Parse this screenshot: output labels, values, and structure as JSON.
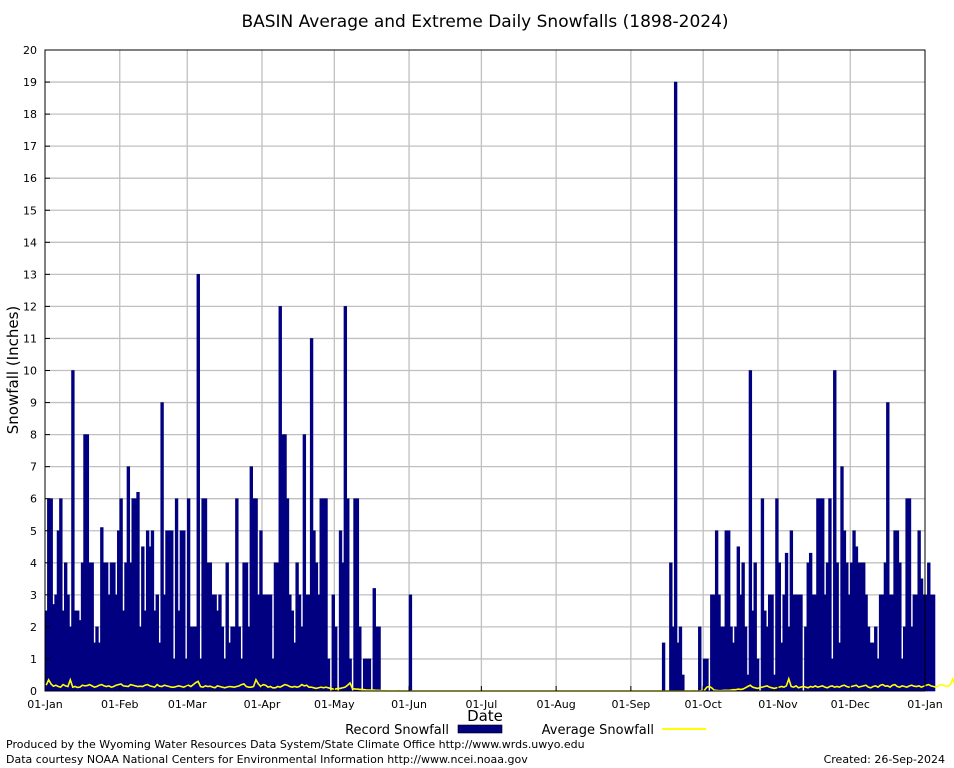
{
  "chart_data": {
    "type": "bar",
    "title": "BASIN Average and Extreme Daily Snowfalls (1898-2024)",
    "xlabel": "Date",
    "ylabel": "Snowfall (Inches)",
    "ylim": [
      0,
      20
    ],
    "yticks": [
      0,
      1,
      2,
      3,
      4,
      5,
      6,
      7,
      8,
      9,
      10,
      11,
      12,
      13,
      14,
      15,
      16,
      17,
      18,
      19,
      20
    ],
    "xlim_days": [
      0,
      365
    ],
    "grid": true,
    "legend_position": "bottom",
    "month_ticks": [
      {
        "label": "01-Jan",
        "day": 0
      },
      {
        "label": "01-Feb",
        "day": 31
      },
      {
        "label": "01-Mar",
        "day": 59
      },
      {
        "label": "01-Apr",
        "day": 90
      },
      {
        "label": "01-May",
        "day": 120
      },
      {
        "label": "01-Jun",
        "day": 151
      },
      {
        "label": "01-Jul",
        "day": 181
      },
      {
        "label": "01-Aug",
        "day": 212
      },
      {
        "label": "01-Sep",
        "day": 243
      },
      {
        "label": "01-Oct",
        "day": 273
      },
      {
        "label": "01-Nov",
        "day": 304
      },
      {
        "label": "01-Dec",
        "day": 334
      },
      {
        "label": "01-Jan",
        "day": 365
      }
    ],
    "series": [
      {
        "name": "Record Snowfall",
        "color": "#000080",
        "values": [
          2.5,
          6,
          6,
          2.7,
          3,
          5,
          6,
          2.5,
          4,
          3,
          2,
          10,
          2.5,
          2.5,
          2.2,
          4,
          8,
          8,
          4,
          4,
          1.5,
          2,
          1.5,
          5.1,
          4,
          4,
          3,
          4,
          4,
          3,
          5,
          6,
          2.5,
          4,
          7,
          4,
          6,
          6,
          6.2,
          2,
          4.5,
          2.5,
          5,
          4.5,
          5,
          2.5,
          3,
          1.5,
          9,
          3,
          5,
          5,
          5,
          1,
          6,
          2.5,
          5,
          5,
          1,
          6,
          2,
          2,
          2,
          13,
          1,
          6,
          6,
          4,
          4,
          3,
          3,
          2.5,
          3,
          2,
          1,
          4,
          1.5,
          2,
          2,
          6,
          2,
          1,
          4,
          4,
          2,
          7,
          6,
          6,
          3,
          5,
          3,
          3,
          3,
          3,
          1,
          4,
          4,
          12,
          8,
          8,
          6,
          3,
          2.5,
          1.5,
          4,
          3,
          2,
          8,
          3,
          3,
          11,
          5,
          4,
          3,
          6,
          6,
          6,
          1,
          0,
          3,
          2,
          0,
          5,
          4,
          12,
          6,
          1,
          0,
          6,
          6,
          2,
          0,
          1,
          1,
          1,
          0,
          3.2,
          2,
          2,
          0,
          0,
          0,
          0,
          0,
          0,
          0,
          0,
          0,
          0,
          0,
          0,
          3,
          0,
          0,
          0,
          0,
          0,
          0,
          0,
          0,
          0,
          0,
          0,
          0,
          0,
          0,
          0,
          0,
          0,
          0,
          0,
          0,
          0,
          0,
          0,
          0,
          0,
          0,
          0,
          0,
          0,
          0,
          0,
          0,
          0,
          0,
          0,
          0,
          0,
          0,
          0,
          0,
          0,
          0,
          0,
          0,
          0,
          0,
          0,
          0,
          0,
          0,
          0,
          0,
          0,
          0,
          0,
          0,
          0,
          0,
          0,
          0,
          0,
          0,
          0,
          0,
          0,
          0,
          0,
          0,
          0,
          0,
          0,
          0,
          0,
          0,
          0,
          0,
          0,
          0,
          0,
          0,
          0,
          0,
          0,
          0,
          0,
          0,
          0,
          0,
          0,
          0,
          0,
          0,
          0,
          0,
          0,
          0,
          0,
          0,
          0,
          0,
          0,
          0,
          0,
          0,
          1.5,
          0,
          0,
          4,
          2,
          19,
          1.5,
          2,
          0.5,
          0,
          0,
          0,
          0,
          0,
          0,
          2,
          0,
          1,
          1,
          0,
          3,
          3,
          5,
          3,
          2,
          2,
          5,
          5,
          2,
          1.5,
          2,
          4.5,
          3,
          4,
          2,
          0.5,
          10,
          2.5,
          4,
          1,
          0,
          6,
          2.5,
          2,
          3,
          3,
          0.5,
          6,
          4,
          1.5,
          3,
          4.3,
          2,
          5,
          3,
          3,
          3,
          3,
          0,
          2,
          4,
          4.3,
          3,
          3,
          6,
          6,
          6,
          3,
          4,
          6,
          1,
          10,
          4,
          1.5,
          7,
          5,
          4,
          3,
          4,
          5,
          4.5,
          4,
          4,
          4,
          3,
          2,
          1.5,
          1.5,
          2,
          1,
          3,
          3,
          4,
          9,
          3,
          3,
          5,
          5,
          4,
          1,
          2,
          6,
          6,
          2,
          3,
          3,
          5,
          3.5,
          3,
          3,
          4,
          3,
          3
        ]
      },
      {
        "name": "Average Snowfall",
        "color": "#ffff00",
        "values": [
          0.18,
          0.35,
          0.22,
          0.15,
          0.18,
          0.14,
          0.12,
          0.2,
          0.16,
          0.14,
          0.35,
          0.12,
          0.14,
          0.11,
          0.12,
          0.18,
          0.16,
          0.17,
          0.2,
          0.16,
          0.12,
          0.14,
          0.18,
          0.2,
          0.16,
          0.14,
          0.16,
          0.12,
          0.14,
          0.18,
          0.2,
          0.22,
          0.16,
          0.15,
          0.14,
          0.2,
          0.18,
          0.16,
          0.14,
          0.15,
          0.14,
          0.18,
          0.2,
          0.16,
          0.14,
          0.12,
          0.2,
          0.15,
          0.14,
          0.18,
          0.16,
          0.14,
          0.12,
          0.12,
          0.14,
          0.16,
          0.14,
          0.12,
          0.15,
          0.18,
          0.14,
          0.2,
          0.26,
          0.3,
          0.14,
          0.12,
          0.16,
          0.14,
          0.15,
          0.12,
          0.1,
          0.16,
          0.14,
          0.12,
          0.1,
          0.12,
          0.14,
          0.13,
          0.12,
          0.14,
          0.16,
          0.2,
          0.22,
          0.14,
          0.12,
          0.12,
          0.14,
          0.35,
          0.22,
          0.14,
          0.2,
          0.18,
          0.12,
          0.14,
          0.1,
          0.1,
          0.14,
          0.12,
          0.16,
          0.2,
          0.18,
          0.14,
          0.12,
          0.14,
          0.12,
          0.14,
          0.2,
          0.16,
          0.18,
          0.12,
          0.12,
          0.1,
          0.08,
          0.1,
          0.12,
          0.1,
          0.12,
          0.1,
          0.08,
          0.06,
          0.06,
          0.08,
          0.08,
          0.1,
          0.12,
          0.18,
          0.25,
          0.08,
          0.06,
          0.06,
          0.05,
          0.05,
          0.04,
          0.03,
          0.03,
          0.03,
          0.03,
          0.02,
          0.02,
          0.01,
          0.01,
          0.01,
          0,
          0,
          0,
          0,
          0.01,
          0,
          0,
          0,
          0,
          0,
          0,
          0,
          0,
          0,
          0,
          0,
          0,
          0,
          0,
          0,
          0,
          0,
          0,
          0,
          0,
          0,
          0,
          0,
          0,
          0,
          0,
          0,
          0,
          0,
          0,
          0,
          0,
          0,
          0,
          0,
          0,
          0,
          0,
          0,
          0,
          0,
          0,
          0,
          0,
          0,
          0,
          0,
          0,
          0,
          0,
          0,
          0,
          0,
          0,
          0,
          0,
          0,
          0,
          0,
          0,
          0,
          0,
          0,
          0,
          0,
          0,
          0,
          0,
          0,
          0,
          0,
          0,
          0,
          0,
          0,
          0,
          0,
          0,
          0,
          0,
          0,
          0,
          0,
          0,
          0,
          0,
          0,
          0,
          0,
          0,
          0,
          0,
          0,
          0,
          0,
          0,
          0,
          0,
          0,
          0,
          0,
          0,
          0,
          0,
          0,
          0,
          0,
          0,
          0,
          0,
          0,
          0,
          0,
          0,
          0,
          0,
          0,
          0,
          0,
          0,
          0,
          0,
          0.01,
          0,
          0,
          0.02,
          0.02,
          0.12,
          0.14,
          0.1,
          0.03,
          0.02,
          0.01,
          0.01,
          0.02,
          0.02,
          0.02,
          0.03,
          0.04,
          0.04,
          0.06,
          0.05,
          0.06,
          0.1,
          0.14,
          0.18,
          0.12,
          0.1,
          0.08,
          0.1,
          0.12,
          0.14,
          0.16,
          0.12,
          0.1,
          0.08,
          0.1,
          0.12,
          0.14,
          0.12,
          0.16,
          0.38,
          0.14,
          0.12,
          0.16,
          0.1,
          0.12,
          0.14,
          0.12,
          0.1,
          0.14,
          0.12,
          0.16,
          0.12,
          0.14,
          0.16,
          0.12,
          0.1,
          0.14,
          0.16,
          0.12,
          0.14,
          0.12,
          0.16,
          0.18,
          0.14,
          0.12,
          0.14,
          0.16,
          0.18,
          0.12,
          0.14,
          0.16,
          0.18,
          0.12,
          0.1,
          0.14,
          0.16,
          0.12,
          0.18,
          0.2,
          0.15,
          0.16,
          0.12,
          0.18,
          0.2,
          0.14,
          0.12,
          0.16,
          0.14,
          0.12,
          0.16,
          0.18,
          0.15,
          0.14,
          0.16,
          0.12,
          0.15,
          0.18,
          0.2,
          0.16,
          0.14,
          0.12,
          0.16,
          0.2,
          0.18,
          0.16,
          0.14,
          0.2,
          0.38,
          0.16,
          0.18,
          0.14,
          0.2,
          0.2,
          0.16
        ]
      }
    ]
  },
  "footer": {
    "left_line1": "Produced by the Wyoming Water Resources Data System/State Climate Office http://www.wrds.uwyo.edu",
    "left_line2": "Data courtesy NOAA National Centers for Environmental Information http://www.ncei.noaa.gov",
    "created": "Created:  26-Sep-2024"
  }
}
